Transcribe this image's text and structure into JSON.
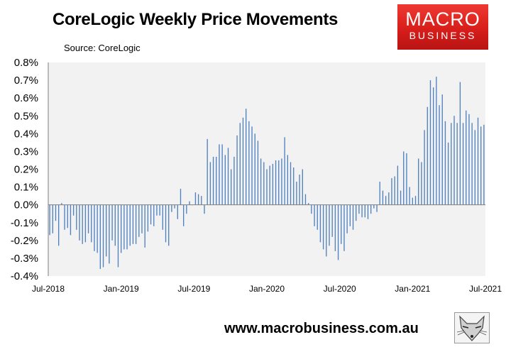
{
  "header": {
    "title": "CoreLogic Weekly Price Movements",
    "source": "Source: CoreLogic"
  },
  "logo": {
    "line1": "MACRO",
    "line2": "BUSINESS"
  },
  "footer": {
    "url": "www.macrobusiness.com.au"
  },
  "icons": {
    "fox": "fox-head-icon"
  },
  "colors": {
    "bar": "#4f81bd",
    "plot_background": "#f2f2f2",
    "zero_line": "#7f7f7f",
    "logo_red": "#d81e1a"
  },
  "chart_data": {
    "type": "bar",
    "title": "CoreLogic Weekly Price Movements",
    "xlabel": "",
    "ylabel": "",
    "ylim": [
      -0.4,
      0.8
    ],
    "yticks": [
      "0.8%",
      "0.7%",
      "0.6%",
      "0.5%",
      "0.4%",
      "0.3%",
      "0.2%",
      "0.1%",
      "0.0%",
      "-0.1%",
      "-0.2%",
      "-0.3%",
      "-0.4%"
    ],
    "xticks": [
      "Jul-2018",
      "Jan-2019",
      "Jul-2019",
      "Jan-2020",
      "Jul-2020",
      "Jan-2021",
      "Jul-2021"
    ],
    "x_start": "Jul-2018",
    "x_end": "Jul-2021",
    "grid": false,
    "legend": "none",
    "values": [
      -0.17,
      -0.16,
      -0.09,
      -0.23,
      0.01,
      -0.14,
      -0.13,
      -0.17,
      -0.06,
      -0.14,
      -0.2,
      -0.22,
      -0.21,
      -0.16,
      -0.21,
      -0.26,
      -0.27,
      -0.36,
      -0.35,
      -0.29,
      -0.33,
      -0.2,
      -0.23,
      -0.35,
      -0.27,
      -0.25,
      -0.25,
      -0.23,
      -0.22,
      -0.22,
      -0.18,
      -0.16,
      -0.24,
      -0.15,
      -0.11,
      -0.12,
      -0.06,
      -0.06,
      -0.14,
      -0.21,
      -0.23,
      -0.04,
      -0.02,
      -0.08,
      0.09,
      -0.12,
      -0.05,
      0.02,
      0.0,
      0.07,
      0.06,
      0.05,
      -0.05,
      0.37,
      0.24,
      0.27,
      0.27,
      0.34,
      0.34,
      0.28,
      0.32,
      0.2,
      0.27,
      0.39,
      0.46,
      0.49,
      0.54,
      0.47,
      0.44,
      0.4,
      0.36,
      0.26,
      0.24,
      0.2,
      0.22,
      0.23,
      0.25,
      0.25,
      0.26,
      0.38,
      0.28,
      0.24,
      0.21,
      0.13,
      0.17,
      0.2,
      0.06,
      0.01,
      -0.05,
      -0.12,
      -0.14,
      -0.21,
      -0.25,
      -0.29,
      -0.23,
      -0.18,
      -0.26,
      -0.31,
      -0.22,
      -0.26,
      -0.16,
      -0.12,
      -0.14,
      -0.09,
      -0.05,
      -0.07,
      -0.07,
      -0.08,
      -0.05,
      -0.02,
      -0.04,
      0.13,
      0.08,
      0.05,
      0.07,
      0.15,
      0.16,
      0.22,
      0.08,
      0.3,
      0.29,
      0.1,
      0.04,
      0.05,
      0.26,
      0.24,
      0.42,
      0.55,
      0.7,
      0.66,
      0.72,
      0.56,
      0.62,
      0.47,
      0.35,
      0.46,
      0.5,
      0.46,
      0.69,
      0.46,
      0.53,
      0.51,
      0.46,
      0.42,
      0.49,
      0.44,
      0.45
    ]
  }
}
